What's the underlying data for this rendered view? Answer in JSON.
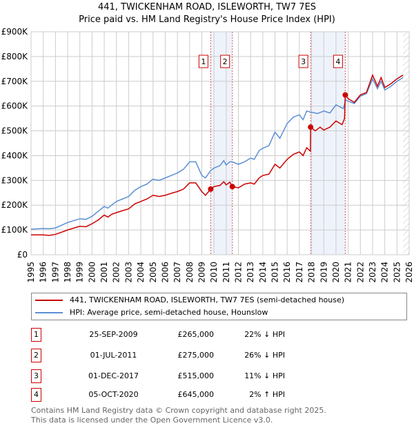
{
  "colors": {
    "property": "#cc0000",
    "hpi": "#5b8fd4",
    "grid": "#cccccc",
    "shade": "#eef3fb"
  },
  "chart_data": {
    "type": "line",
    "title": "441, TWICKENHAM ROAD, ISLEWORTH, TW7 7ES",
    "subtitle": "Price paid vs. HM Land Registry's House Price Index (HPI)",
    "xlim": [
      1995,
      2026
    ],
    "ylim": [
      0,
      900000
    ],
    "x_ticks": [
      "1995",
      "1996",
      "1997",
      "1998",
      "1999",
      "2000",
      "2001",
      "2002",
      "2003",
      "2004",
      "2005",
      "2006",
      "2007",
      "2008",
      "2009",
      "2010",
      "2011",
      "2012",
      "2013",
      "2014",
      "2015",
      "2016",
      "2017",
      "2018",
      "2019",
      "2020",
      "2021",
      "2022",
      "2023",
      "2024",
      "2025",
      "2026"
    ],
    "y_ticks": [
      {
        "v": 0,
        "label": "£0"
      },
      {
        "v": 100000,
        "label": "£100K"
      },
      {
        "v": 200000,
        "label": "£200K"
      },
      {
        "v": 300000,
        "label": "£300K"
      },
      {
        "v": 400000,
        "label": "£400K"
      },
      {
        "v": 500000,
        "label": "£500K"
      },
      {
        "v": 600000,
        "label": "£600K"
      },
      {
        "v": 700000,
        "label": "£700K"
      },
      {
        "v": 800000,
        "label": "£800K"
      },
      {
        "v": 900000,
        "label": "£900K"
      }
    ],
    "shaded_ranges": [
      [
        2009.73,
        2011.5
      ],
      [
        2017.92,
        2020.76
      ]
    ],
    "forecast_start": 2025.5,
    "series": [
      {
        "name": "441, TWICKENHAM ROAD, ISLEWORTH, TW7 7ES (semi-detached house)",
        "color": "#cc0000",
        "points": [
          [
            1995,
            80
          ],
          [
            1996,
            80
          ],
          [
            1996.5,
            78
          ],
          [
            1997,
            82
          ],
          [
            1998,
            100
          ],
          [
            1999,
            115
          ],
          [
            1999.5,
            113
          ],
          [
            2000,
            125
          ],
          [
            2000.5,
            140
          ],
          [
            2001,
            160
          ],
          [
            2001.3,
            152
          ],
          [
            2001.6,
            163
          ],
          [
            2002,
            170
          ],
          [
            2002.5,
            178
          ],
          [
            2003,
            185
          ],
          [
            2003.5,
            205
          ],
          [
            2004,
            215
          ],
          [
            2004.5,
            225
          ],
          [
            2005,
            240
          ],
          [
            2005.5,
            235
          ],
          [
            2006,
            240
          ],
          [
            2006.5,
            248
          ],
          [
            2007,
            255
          ],
          [
            2007.5,
            265
          ],
          [
            2008,
            290
          ],
          [
            2008.5,
            290
          ],
          [
            2009,
            255
          ],
          [
            2009.3,
            240
          ],
          [
            2009.73,
            265
          ],
          [
            2010,
            275
          ],
          [
            2010.5,
            280
          ],
          [
            2010.8,
            295
          ],
          [
            2011,
            282
          ],
          [
            2011.3,
            293
          ],
          [
            2011.5,
            275
          ],
          [
            2012,
            270
          ],
          [
            2012.5,
            285
          ],
          [
            2013,
            290
          ],
          [
            2013.3,
            285
          ],
          [
            2013.7,
            310
          ],
          [
            2014,
            320
          ],
          [
            2014.5,
            325
          ],
          [
            2015,
            365
          ],
          [
            2015.4,
            350
          ],
          [
            2016,
            385
          ],
          [
            2016.5,
            405
          ],
          [
            2017,
            415
          ],
          [
            2017.3,
            400
          ],
          [
            2017.6,
            432
          ],
          [
            2017.9,
            418
          ],
          [
            2017.92,
            515
          ],
          [
            2018.3,
            500
          ],
          [
            2018.7,
            515
          ],
          [
            2019,
            503
          ],
          [
            2019.5,
            515
          ],
          [
            2020,
            540
          ],
          [
            2020.5,
            525
          ],
          [
            2020.7,
            550
          ],
          [
            2020.76,
            645
          ],
          [
            2021,
            630
          ],
          [
            2021.5,
            615
          ],
          [
            2022,
            645
          ],
          [
            2022.5,
            655
          ],
          [
            2023,
            725
          ],
          [
            2023.4,
            680
          ],
          [
            2023.7,
            715
          ],
          [
            2024,
            675
          ],
          [
            2024.5,
            690
          ],
          [
            2025,
            710
          ],
          [
            2025.5,
            725
          ]
        ]
      },
      {
        "name": "HPI: Average price, semi-detached house, Hounslow",
        "color": "#5b8fd4",
        "points": [
          [
            1995,
            103
          ],
          [
            1996,
            106
          ],
          [
            1996.5,
            105
          ],
          [
            1997,
            108
          ],
          [
            1998,
            130
          ],
          [
            1999,
            145
          ],
          [
            1999.5,
            143
          ],
          [
            2000,
            155
          ],
          [
            2000.5,
            175
          ],
          [
            2001,
            195
          ],
          [
            2001.3,
            188
          ],
          [
            2001.6,
            200
          ],
          [
            2002,
            215
          ],
          [
            2002.5,
            225
          ],
          [
            2003,
            235
          ],
          [
            2003.5,
            260
          ],
          [
            2004,
            275
          ],
          [
            2004.5,
            285
          ],
          [
            2005,
            305
          ],
          [
            2005.5,
            300
          ],
          [
            2006,
            310
          ],
          [
            2006.5,
            320
          ],
          [
            2007,
            330
          ],
          [
            2007.5,
            345
          ],
          [
            2008,
            375
          ],
          [
            2008.5,
            375
          ],
          [
            2009,
            320
          ],
          [
            2009.3,
            310
          ],
          [
            2009.73,
            340
          ],
          [
            2010,
            350
          ],
          [
            2010.5,
            360
          ],
          [
            2010.8,
            380
          ],
          [
            2011,
            362
          ],
          [
            2011.3,
            375
          ],
          [
            2011.5,
            375
          ],
          [
            2012,
            365
          ],
          [
            2012.5,
            375
          ],
          [
            2013,
            390
          ],
          [
            2013.3,
            385
          ],
          [
            2013.7,
            420
          ],
          [
            2014,
            430
          ],
          [
            2014.5,
            440
          ],
          [
            2015,
            495
          ],
          [
            2015.4,
            470
          ],
          [
            2016,
            530
          ],
          [
            2016.5,
            555
          ],
          [
            2017,
            565
          ],
          [
            2017.3,
            545
          ],
          [
            2017.6,
            580
          ],
          [
            2018,
            575
          ],
          [
            2018.5,
            570
          ],
          [
            2019,
            580
          ],
          [
            2019.5,
            572
          ],
          [
            2020,
            605
          ],
          [
            2020.6,
            590
          ],
          [
            2020.8,
            625
          ],
          [
            2021,
            620
          ],
          [
            2021.5,
            610
          ],
          [
            2022,
            640
          ],
          [
            2022.5,
            650
          ],
          [
            2023,
            710
          ],
          [
            2023.4,
            670
          ],
          [
            2023.7,
            700
          ],
          [
            2024,
            665
          ],
          [
            2024.5,
            680
          ],
          [
            2025,
            700
          ],
          [
            2025.5,
            715
          ]
        ]
      }
    ],
    "sales": [
      {
        "n": "1",
        "x": 2009.73,
        "y": 265
      },
      {
        "n": "2",
        "x": 2011.5,
        "y": 275
      },
      {
        "n": "3",
        "x": 2017.92,
        "y": 515
      },
      {
        "n": "4",
        "x": 2020.76,
        "y": 645
      }
    ]
  },
  "title": "441, TWICKENHAM ROAD, ISLEWORTH, TW7 7ES",
  "subtitle": "Price paid vs. HM Land Registry's House Price Index (HPI)",
  "legend": {
    "property": "441, TWICKENHAM ROAD, ISLEWORTH, TW7 7ES (semi-detached house)",
    "hpi": "HPI: Average price, semi-detached house, Hounslow"
  },
  "transactions": [
    {
      "n": "1",
      "date": "25-SEP-2009",
      "price": "£265,000",
      "hpi": "22% ↓ HPI"
    },
    {
      "n": "2",
      "date": "01-JUL-2011",
      "price": "£275,000",
      "hpi": "26% ↓ HPI"
    },
    {
      "n": "3",
      "date": "01-DEC-2017",
      "price": "£515,000",
      "hpi": "11% ↓ HPI"
    },
    {
      "n": "4",
      "date": "05-OCT-2020",
      "price": "£645,000",
      "hpi": "2% ↑ HPI"
    }
  ],
  "footer": {
    "line1": "Contains HM Land Registry data © Crown copyright and database right 2025.",
    "line2": "This data is licensed under the Open Government Licence v3.0."
  }
}
